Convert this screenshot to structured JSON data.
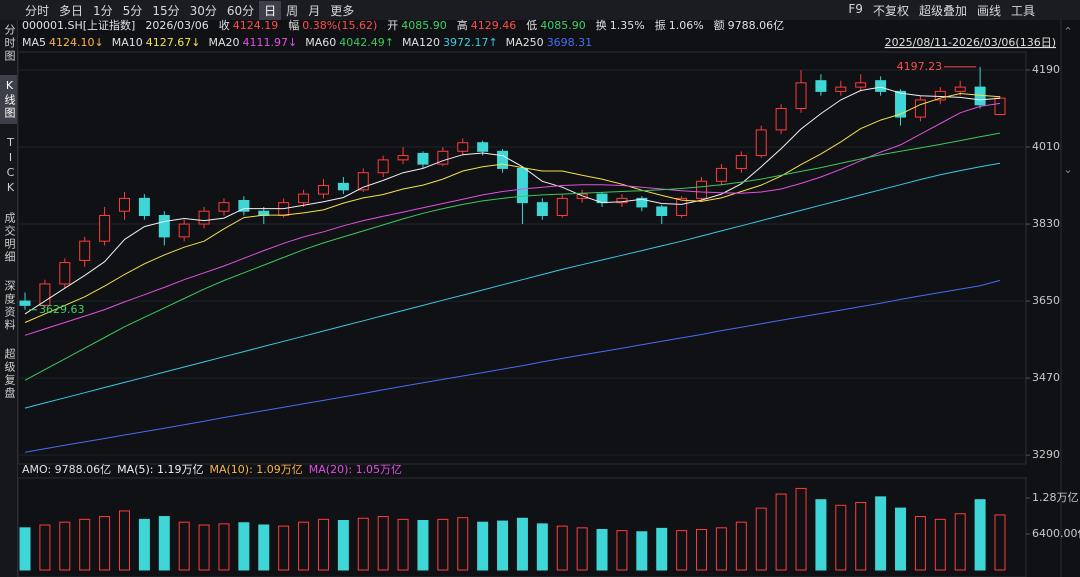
{
  "toolbar": {
    "periods": [
      "分时",
      "多日",
      "1分",
      "5分",
      "15分",
      "30分",
      "60分",
      "日",
      "周",
      "月",
      "更多"
    ],
    "active": 7,
    "tools": [
      "F9",
      "不复权",
      "超级叠加",
      "画线",
      "工具"
    ]
  },
  "sidebar": {
    "items": [
      "分时图",
      "K线图",
      "TICK",
      "成交明细",
      "深度资料",
      "超级复盘"
    ],
    "active": 1
  },
  "quote": {
    "code": "000001.SH[上证指数]",
    "date": "2026/03/06",
    "items": [
      {
        "label": "收",
        "value": "4124.19",
        "color": "#ff4d4d"
      },
      {
        "label": "幅",
        "value": "0.38%(15.62)",
        "color": "#ff4d4d"
      },
      {
        "label": "开",
        "value": "4085.90",
        "color": "#3dd16b"
      },
      {
        "label": "高",
        "value": "4129.46",
        "color": "#ff4d4d"
      },
      {
        "label": "低",
        "value": "4085.90",
        "color": "#3dd16b"
      },
      {
        "label": "换",
        "value": "1.35%",
        "color": "#e0e0e0"
      },
      {
        "label": "振",
        "value": "1.06%",
        "color": "#e0e0e0"
      },
      {
        "label": "额",
        "value": "9788.06亿",
        "color": "#e0e0e0"
      }
    ]
  },
  "range": "2025/08/11-2026/03/06(136日)",
  "chart_data": [
    {
      "type": "candlestick",
      "up_color": "#ff3b3b",
      "down_color": "#3ed6d6",
      "open": [
        3650,
        3640,
        3690,
        3745,
        3790,
        3860,
        3890,
        3850,
        3800,
        3830,
        3860,
        3885,
        3860,
        3850,
        3880,
        3900,
        3925,
        3910,
        3950,
        3980,
        3995,
        3970,
        4000,
        4020,
        4000,
        3960,
        3880,
        3850,
        3890,
        3900,
        3880,
        3890,
        3870,
        3850,
        3890,
        3930,
        3960,
        3990,
        4050,
        4100,
        4165,
        4140,
        4150,
        4165,
        4140,
        4080,
        4120,
        4140,
        4150,
        4085.9
      ],
      "high": [
        3670,
        3700,
        3750,
        3800,
        3870,
        3905,
        3900,
        3860,
        3840,
        3870,
        3890,
        3895,
        3870,
        3890,
        3910,
        3935,
        3940,
        3960,
        3990,
        4010,
        4000,
        4010,
        4030,
        4025,
        4005,
        3965,
        3890,
        3900,
        3910,
        3905,
        3900,
        3895,
        3875,
        3895,
        3940,
        3970,
        4000,
        4060,
        4110,
        4190,
        4180,
        4165,
        4180,
        4175,
        4145,
        4130,
        4150,
        4165,
        4197.23,
        4129.46
      ],
      "low": [
        3629.63,
        3635,
        3680,
        3730,
        3780,
        3840,
        3840,
        3780,
        3790,
        3820,
        3850,
        3850,
        3830,
        3845,
        3870,
        3890,
        3900,
        3905,
        3940,
        3970,
        3960,
        3965,
        3990,
        3990,
        3950,
        3830,
        3840,
        3845,
        3880,
        3870,
        3870,
        3860,
        3830,
        3845,
        3885,
        3920,
        3950,
        3985,
        4040,
        4090,
        4130,
        4130,
        4140,
        4130,
        4060,
        4070,
        4110,
        4130,
        4100,
        4085.9
      ],
      "close": [
        3640,
        3690,
        3740,
        3790,
        3850,
        3890,
        3850,
        3800,
        3830,
        3860,
        3880,
        3860,
        3850,
        3880,
        3900,
        3920,
        3910,
        3950,
        3980,
        3990,
        3970,
        4000,
        4020,
        4000,
        3960,
        3880,
        3850,
        3890,
        3900,
        3880,
        3890,
        3870,
        3850,
        3890,
        3930,
        3960,
        3990,
        4050,
        4100,
        4160,
        4140,
        4150,
        4160,
        4140,
        4080,
        4120,
        4140,
        4150,
        4108.57,
        4124.19
      ],
      "series": [
        {
          "name": "MA5",
          "color": "#f0f0f0",
          "legend_color": "#ffb347",
          "legend_value": "4124.10↓",
          "values": [
            3620,
            3650,
            3680,
            3710,
            3742,
            3794,
            3824,
            3836,
            3843,
            3838,
            3844,
            3866,
            3866,
            3866,
            3874,
            3882,
            3892,
            3916,
            3932,
            3950,
            3960,
            3978,
            3992,
            3996,
            3990,
            3964,
            3930,
            3916,
            3896,
            3880,
            3882,
            3888,
            3878,
            3876,
            3886,
            3900,
            3924,
            3964,
            4006,
            4052,
            4088,
            4120,
            4142,
            4150,
            4136,
            4130,
            4128,
            4126,
            4120,
            4124.1
          ]
        },
        {
          "name": "MA10",
          "color": "#f5e04a",
          "legend_color": "#f5e04a",
          "legend_value": "4127.67↓",
          "values": [
            3600,
            3620,
            3640,
            3660,
            3685,
            3712,
            3737,
            3758,
            3776,
            3790,
            3819,
            3845,
            3851,
            3851,
            3856,
            3863,
            3879,
            3891,
            3899,
            3912,
            3921,
            3935,
            3954,
            3964,
            3970,
            3962,
            3954,
            3954,
            3944,
            3935,
            3923,
            3909,
            3897,
            3886,
            3883,
            3891,
            3906,
            3921,
            3942,
            3969,
            3994,
            4022,
            4053,
            4073,
            4087,
            4109,
            4124,
            4135,
            4131,
            4127.67
          ]
        },
        {
          "name": "MA20",
          "color": "#e050e0",
          "legend_color": "#e050e0",
          "legend_value": "4111.97↓",
          "values": [
            3570,
            3585,
            3600,
            3615,
            3630,
            3648,
            3665,
            3682,
            3700,
            3716,
            3732,
            3750,
            3768,
            3785,
            3800,
            3812,
            3826,
            3838,
            3848,
            3858,
            3868,
            3878,
            3888,
            3898,
            3906,
            3912,
            3916,
            3920,
            3922,
            3922,
            3920,
            3916,
            3912,
            3908,
            3905,
            3903,
            3902,
            3905,
            3912,
            3925,
            3940,
            3958,
            3978,
            3998,
            4015,
            4040,
            4065,
            4090,
            4105,
            4111.97
          ]
        },
        {
          "name": "MA60",
          "color": "#3cc85a",
          "legend_color": "#3cc85a",
          "legend_value": "4042.49↑",
          "values": [
            3465,
            3490,
            3515,
            3540,
            3565,
            3590,
            3612,
            3634,
            3656,
            3678,
            3698,
            3716,
            3734,
            3752,
            3770,
            3786,
            3800,
            3814,
            3828,
            3842,
            3855,
            3866,
            3876,
            3884,
            3890,
            3895,
            3898,
            3900,
            3902,
            3904,
            3906,
            3908,
            3910,
            3913,
            3917,
            3922,
            3928,
            3935,
            3944,
            3953,
            3962,
            3972,
            3982,
            3992,
            4000,
            4008,
            4016,
            4025,
            4034,
            4042.49
          ]
        },
        {
          "name": "MA120",
          "color": "#3ec8e0",
          "legend_color": "#3ec8e0",
          "legend_value": "3972.17↑",
          "values": [
            3400,
            3412,
            3424,
            3436,
            3448,
            3460,
            3472,
            3484,
            3496,
            3508,
            3520,
            3532,
            3544,
            3556,
            3568,
            3580,
            3592,
            3604,
            3616,
            3628,
            3640,
            3652,
            3664,
            3676,
            3688,
            3700,
            3712,
            3724,
            3735,
            3746,
            3757,
            3768,
            3779,
            3790,
            3802,
            3814,
            3826,
            3838,
            3850,
            3862,
            3874,
            3886,
            3898,
            3910,
            3922,
            3934,
            3945,
            3955,
            3964,
            3972.17
          ]
        },
        {
          "name": "MA250",
          "color": "#4a6cf0",
          "legend_color": "#4a6cf0",
          "legend_value": "3698.31",
          "values": [
            3297,
            3305,
            3313,
            3321,
            3329,
            3337,
            3345,
            3353,
            3361,
            3369,
            3378,
            3386,
            3394,
            3402,
            3410,
            3418,
            3426,
            3434,
            3443,
            3451,
            3459,
            3467,
            3475,
            3483,
            3491,
            3499,
            3508,
            3516,
            3524,
            3532,
            3540,
            3548,
            3556,
            3564,
            3572,
            3581,
            3589,
            3597,
            3605,
            3613,
            3621,
            3629,
            3637,
            3645,
            3654,
            3662,
            3670,
            3678,
            3686,
            3698.31
          ]
        }
      ],
      "ylim": [
        3274,
        4225
      ],
      "yticks": [
        4190,
        4010,
        3830,
        3650,
        3470,
        3290
      ],
      "grid": true,
      "annotations": {
        "max": "4197.23",
        "min": "3629.63"
      }
    },
    {
      "type": "bar",
      "title": "AMO: 9788.06亿",
      "legend": [
        {
          "text": "MA(5): 1.19万亿",
          "color": "#f0f0f0"
        },
        {
          "text": "MA(10): 1.09万亿",
          "color": "#ffb347"
        },
        {
          "text": "MA(20): 1.05万亿",
          "color": "#e050e0"
        }
      ],
      "values": [
        7500,
        8000,
        8500,
        9000,
        9500,
        10500,
        9000,
        9500,
        8500,
        8000,
        8200,
        8400,
        8000,
        7800,
        8500,
        9000,
        8800,
        9200,
        9500,
        9000,
        8800,
        9000,
        9300,
        8500,
        8700,
        9200,
        8200,
        7800,
        7500,
        7200,
        7000,
        6800,
        7400,
        7000,
        7200,
        7500,
        8500,
        11000,
        13500,
        14500,
        12500,
        11500,
        12000,
        13000,
        11000,
        9500,
        9000,
        10000,
        12500,
        9788.06
      ],
      "ylim": [
        0,
        16000
      ],
      "yticks": [
        {
          "value": 12800,
          "label": "1.28万亿"
        },
        {
          "value": 6400,
          "label": "6400.00亿"
        }
      ]
    }
  ]
}
